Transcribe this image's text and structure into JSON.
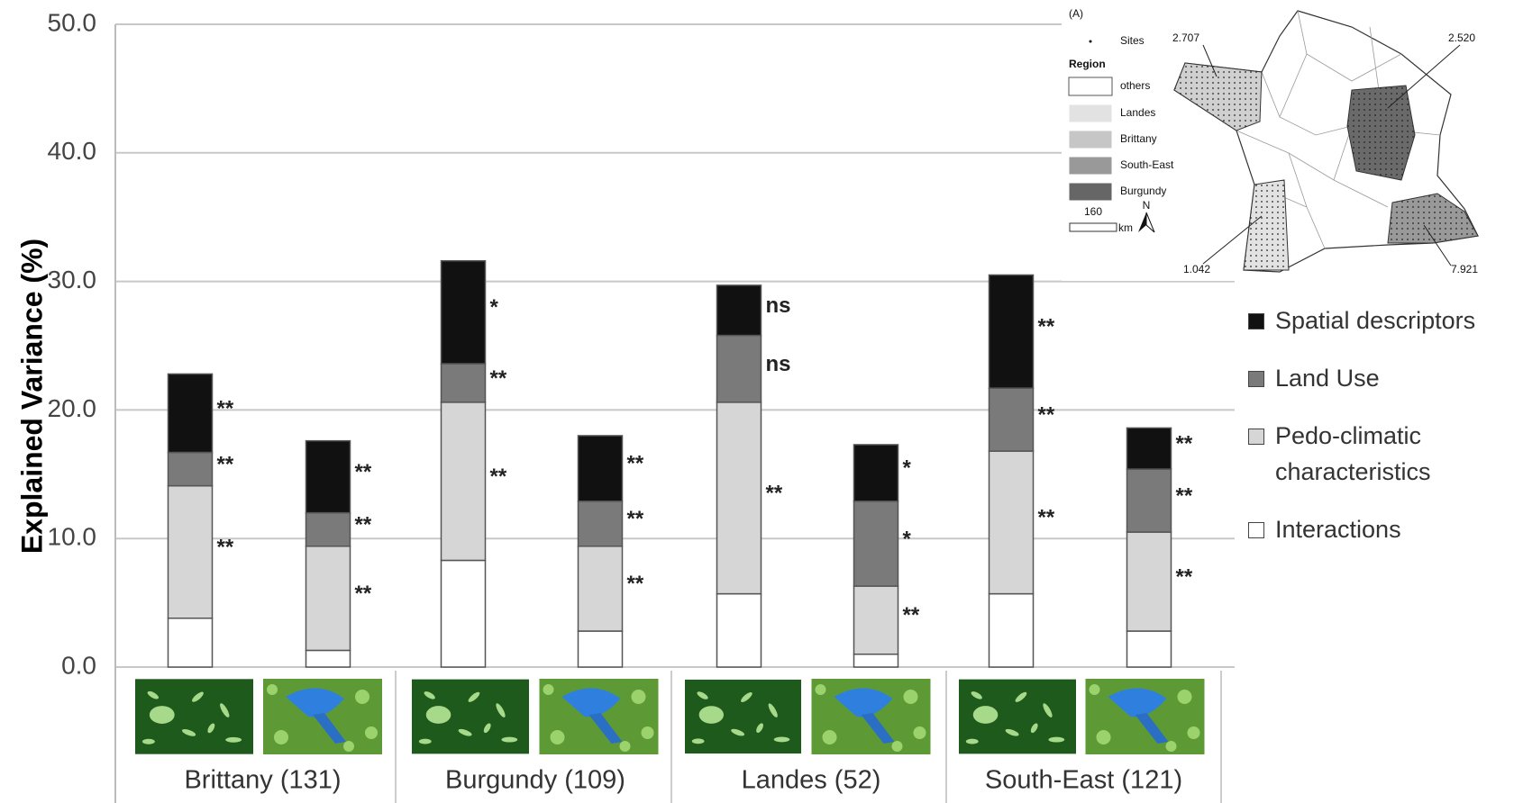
{
  "chart_data": {
    "type": "bar",
    "stacked": true,
    "y_label": "Explained Variance (%)",
    "ylim": [
      0,
      50
    ],
    "yticks": [
      {
        "value": 0,
        "label": "0.0"
      },
      {
        "value": 10,
        "label": "10.0"
      },
      {
        "value": 20,
        "label": "20.0"
      },
      {
        "value": 30,
        "label": "30.0"
      },
      {
        "value": 40,
        "label": "40.0"
      },
      {
        "value": 50,
        "label": "50.0"
      }
    ],
    "grid": true,
    "categories": [
      null,
      null,
      null,
      null,
      null,
      null,
      null,
      null
    ],
    "groups": [
      "Brittany (131)",
      "Burgundy (109)",
      "Landes (52)",
      "South-East (121)"
    ],
    "series": [
      {
        "name": "Spatial descriptors",
        "color": "#111111",
        "values": [
          6.1,
          5.6,
          8.0,
          5.1,
          3.9,
          4.4,
          8.8,
          3.2
        ],
        "significance": [
          "**",
          "**",
          "*",
          "**",
          "ns",
          "*",
          "**",
          "**"
        ]
      },
      {
        "name": "Land Use",
        "color": "#7a7a7a",
        "values": [
          2.6,
          2.6,
          3.0,
          3.5,
          5.2,
          6.6,
          4.9,
          4.9
        ],
        "significance": [
          "**",
          "**",
          "**",
          "**",
          "ns",
          "*",
          "**",
          "**"
        ]
      },
      {
        "name": "Pedo-climatic characteristics",
        "color": "#d6d6d6",
        "values": [
          10.3,
          8.1,
          12.3,
          6.6,
          14.9,
          5.3,
          11.1,
          7.7
        ],
        "significance": [
          "**",
          "**",
          "**",
          "**",
          "**",
          "**",
          "**",
          "**"
        ]
      },
      {
        "name": "Interactions",
        "color": "#ffffff",
        "values": [
          3.8,
          1.3,
          8.3,
          2.8,
          5.7,
          1.0,
          5.7,
          2.8
        ]
      }
    ],
    "inset": {
      "panel": "(A)",
      "sites": "Sites",
      "region_title": "Region",
      "regions": [
        "others",
        "Landes",
        "Brittany",
        "South-East",
        "Burgundy"
      ],
      "scale": "160",
      "scale_unit": "km",
      "north": "N",
      "annotations": [
        "2.707",
        "2.520",
        "1.042",
        "7.921"
      ]
    }
  }
}
